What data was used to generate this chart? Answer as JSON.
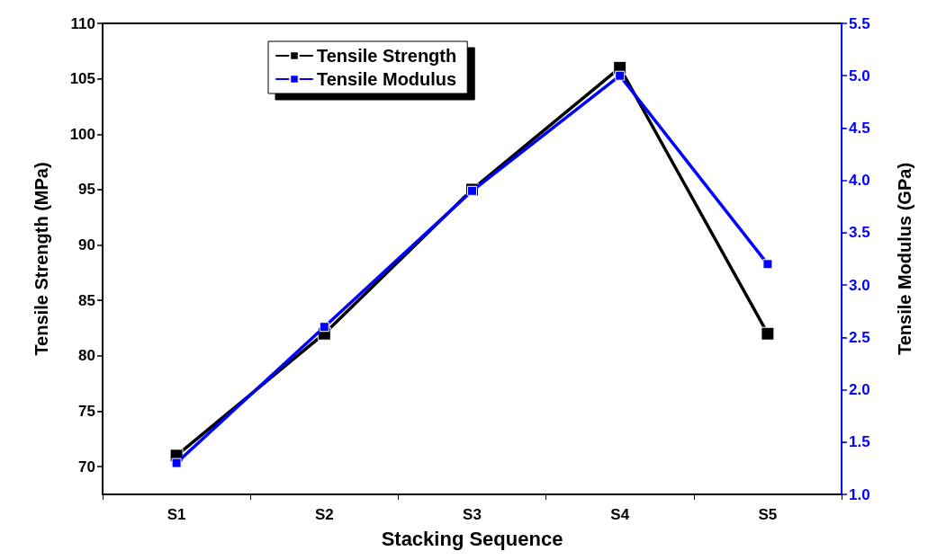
{
  "chart_data": {
    "type": "line",
    "xlabel": "Stacking Sequence",
    "ylabel": "Tensile Strength (MPa)",
    "y2label": "Tensile Modulus (GPa)",
    "categories": [
      "S1",
      "S2",
      "S3",
      "S4",
      "S5"
    ],
    "series": [
      {
        "name": "Tensile Strength",
        "color": "#000000",
        "values": [
          71,
          82,
          95,
          106,
          82
        ]
      },
      {
        "name": "Tensile Modulus",
        "color": "#0000ff",
        "axis": "y2",
        "values": [
          1.3,
          2.6,
          3.9,
          5.0,
          3.2
        ]
      }
    ],
    "ylim": [
      67.5,
      110
    ],
    "yticks": [
      70,
      75,
      80,
      85,
      90,
      95,
      100,
      105,
      110
    ],
    "y2lim": [
      1.0,
      5.5
    ],
    "y2ticks": [
      {
        "value": 1.0,
        "label": "1.0"
      },
      {
        "value": 1.5,
        "label": "1.5"
      },
      {
        "value": 2.0,
        "label": "2.0"
      },
      {
        "value": 2.5,
        "label": "2.5"
      },
      {
        "value": 3.0,
        "label": "3.0"
      },
      {
        "value": 3.5,
        "label": "3.5"
      },
      {
        "value": 4.0,
        "label": "4.0"
      },
      {
        "value": 4.5,
        "label": "4.5"
      },
      {
        "value": 5.0,
        "label": "5.0"
      },
      {
        "value": 5.5,
        "label": "5.5"
      }
    ],
    "legend": "top left",
    "marker": "square",
    "line_style": "solid",
    "grid": false
  }
}
